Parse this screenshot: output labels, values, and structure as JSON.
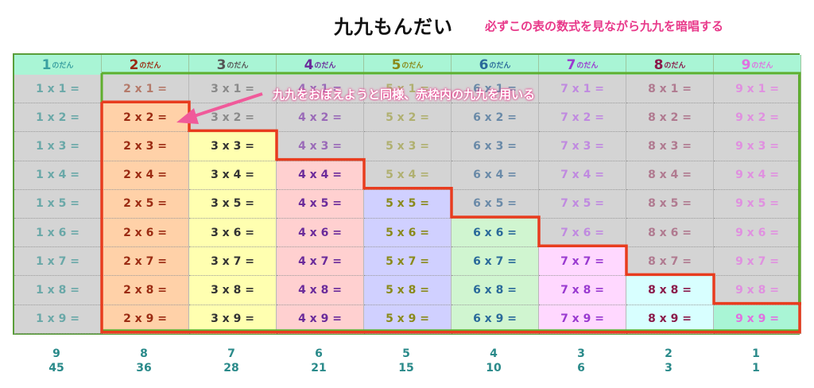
{
  "title": "九九もんだい",
  "subtitle": "必ずこの表の数式を見ながら九九を暗唱する",
  "callout": "九九をおぼえようと同様、赤枠内の九九を用いる",
  "columns": [
    {
      "num": "1",
      "suffix": "のだん",
      "color": "#3aa0a0",
      "tint": "#d4d4d4",
      "dim": "#6aa8a8",
      "cells": [
        "1 x 1 =",
        "1 x 2 =",
        "1 x 3 =",
        "1 x 4 =",
        "1 x 5 =",
        "1 x 6 =",
        "1 x 7 =",
        "1 x 8 =",
        "1 x 9 ="
      ],
      "footer_count": "9",
      "footer_total": "45"
    },
    {
      "num": "2",
      "suffix": "のだん",
      "color": "#9b2b12",
      "tint": "#ffd1a8",
      "dim": "#b47a6a",
      "cells": [
        "2 x 1 =",
        "2 x 2 =",
        "2 x 3 =",
        "2 x 4 =",
        "2 x 5 =",
        "2 x 6 =",
        "2 x 7 =",
        "2 x 8 =",
        "2 x 9 ="
      ],
      "footer_count": "8",
      "footer_total": "36"
    },
    {
      "num": "3",
      "suffix": "のだん",
      "color": "#555555",
      "tint": "#ffffb0",
      "dim": "#8a8a8a",
      "cells": [
        "3 x 1 =",
        "3 x 2 =",
        "3 x 3 =",
        "3 x 4 =",
        "3 x 5 =",
        "3 x 6 =",
        "3 x 7 =",
        "3 x 8 =",
        "3 x 9 ="
      ],
      "footer_count": "7",
      "footer_total": "28"
    },
    {
      "num": "4",
      "suffix": "のだん",
      "color": "#6a2a9a",
      "tint": "#ffd0d0",
      "dim": "#9a6ab8",
      "cells": [
        "4 x 1 =",
        "4 x 2 =",
        "4 x 3 =",
        "4 x 4 =",
        "4 x 5 =",
        "4 x 6 =",
        "4 x 7 =",
        "4 x 8 =",
        "4 x 9 ="
      ],
      "footer_count": "6",
      "footer_total": "21"
    },
    {
      "num": "5",
      "suffix": "のだん",
      "color": "#8a8a1a",
      "tint": "#d0d0ff",
      "dim": "#b0b070",
      "cells": [
        "5 x 1 =",
        "5 x 2 =",
        "5 x 3 =",
        "5 x 4 =",
        "5 x 5 =",
        "5 x 6 =",
        "5 x 7 =",
        "5 x 8 =",
        "5 x 9 ="
      ],
      "footer_count": "5",
      "footer_total": "15"
    },
    {
      "num": "6",
      "suffix": "のだん",
      "color": "#2a6a9a",
      "tint": "#d0f5d0",
      "dim": "#6a8aa8",
      "cells": [
        "6 x 1 =",
        "6 x 2 =",
        "6 x 3 =",
        "6 x 4 =",
        "6 x 5 =",
        "6 x 6 =",
        "6 x 7 =",
        "6 x 8 =",
        "6 x 9 ="
      ],
      "footer_count": "4",
      "footer_total": "10"
    },
    {
      "num": "7",
      "suffix": "のだん",
      "color": "#9a3ad0",
      "tint": "#ffd8ff",
      "dim": "#c08ae0",
      "cells": [
        "7 x 1 =",
        "7 x 2 =",
        "7 x 3 =",
        "7 x 4 =",
        "7 x 5 =",
        "7 x 6 =",
        "7 x 7 =",
        "7 x 8 =",
        "7 x 9 ="
      ],
      "footer_count": "3",
      "footer_total": "6"
    },
    {
      "num": "8",
      "suffix": "のだん",
      "color": "#8a1a4a",
      "tint": "#d8ffff",
      "dim": "#b07a90",
      "cells": [
        "8 x 1 =",
        "8 x 2 =",
        "8 x 3 =",
        "8 x 4 =",
        "8 x 5 =",
        "8 x 6 =",
        "8 x 7 =",
        "8 x 8 =",
        "8 x 9 ="
      ],
      "footer_count": "2",
      "footer_total": "3"
    },
    {
      "num": "9",
      "suffix": "のだん",
      "color": "#e070e0",
      "tint": "#a9f5d5",
      "dim": "#e090e0",
      "cells": [
        "9 x 1 =",
        "9 x 2 =",
        "9 x 3 =",
        "9 x 4 =",
        "9 x 5 =",
        "9 x 6 =",
        "9 x 7 =",
        "9 x 8 =",
        "9 x 9 ="
      ],
      "footer_count": "1",
      "footer_total": "1"
    }
  ]
}
